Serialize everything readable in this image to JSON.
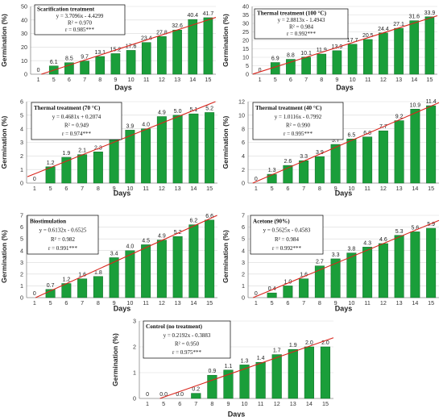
{
  "colors": {
    "bar": "#1a9e3a",
    "bar_edge": "#0f6b25",
    "trend": "#d9251c",
    "grid": "#d9d9d9",
    "axis": "#888888"
  },
  "chart_data": [
    {
      "type": "bar",
      "title": "Scarification treatment",
      "equation": "y = 3.7096x - 4.4299",
      "r2": "R² = 0.970",
      "r": "r = 0.985***",
      "categories": [
        "1",
        "5",
        "6",
        "7",
        "8",
        "9",
        "10",
        "11",
        "12",
        "13",
        "14",
        "15"
      ],
      "values": [
        0,
        6.1,
        8.5,
        9.7,
        13.1,
        15.2,
        17.6,
        23.4,
        27.8,
        32.6,
        40.4,
        41.7
      ],
      "labels": [
        "0",
        "6.1",
        "8.5",
        "9.7",
        "13.1",
        "15.2",
        "17.6",
        "23.4",
        "27.8",
        "32.6",
        "40.4",
        "41.7"
      ],
      "ylim": [
        0,
        50
      ],
      "yticks": [
        0,
        10,
        20,
        30,
        40,
        50
      ],
      "trend": {
        "slope": 3.7096,
        "intercept": -4.4299
      },
      "xlabel": "Days",
      "ylabel": "Germination (%)"
    },
    {
      "type": "bar",
      "title": "Thermal treatment (100 °C)",
      "equation": "y = 2.8813x - 1.4943",
      "r2": "R² = 0.984",
      "r": "r = 0.992***",
      "categories": [
        "1",
        "5",
        "6",
        "7",
        "8",
        "9",
        "10",
        "11",
        "12",
        "13",
        "14",
        "15"
      ],
      "values": [
        0,
        6.9,
        8.8,
        10.1,
        11.9,
        13.9,
        17.7,
        20.5,
        24.4,
        27.1,
        31.6,
        33.9
      ],
      "labels": [
        "0",
        "6.9",
        "8.8",
        "10.1",
        "11.9",
        "13.9",
        "17.7",
        "20.5",
        "24.4",
        "27.1",
        "31.6",
        "33.9"
      ],
      "ylim": [
        0,
        40
      ],
      "yticks": [
        0,
        5,
        10,
        15,
        20,
        25,
        30,
        35,
        40
      ],
      "trend": {
        "slope": 2.8813,
        "intercept": -1.4943
      },
      "xlabel": "Days",
      "ylabel": "Germination (%)"
    },
    {
      "type": "bar",
      "title": "Thermal treatment (70 °C)",
      "equation": "y = 0.4681x + 0.2074",
      "r2": "R² = 0.949",
      "r": "r = 0.974***",
      "categories": [
        "1",
        "5",
        "6",
        "7",
        "8",
        "9",
        "10",
        "11",
        "12",
        "13",
        "14",
        "15"
      ],
      "values": [
        0,
        1.2,
        1.9,
        2.1,
        2.3,
        3.3,
        3.9,
        4.0,
        4.9,
        5.0,
        5.1,
        5.2
      ],
      "labels": [
        "0",
        "1.2",
        "1.9",
        "2.1",
        "2.3",
        "3.3",
        "3.9",
        "4.0",
        "4.9",
        "5.0",
        "5.1",
        "5.2"
      ],
      "ylim": [
        0,
        6
      ],
      "yticks": [
        0,
        1,
        2,
        3,
        4,
        5,
        6
      ],
      "trend": {
        "slope": 0.4681,
        "intercept": 0.2074
      },
      "xlabel": "Days",
      "ylabel": "Germination (%)"
    },
    {
      "type": "bar",
      "title": "Thermal treatment (40 °C)",
      "equation": "y = 1.0116x - 0.7992",
      "r2": "R² = 0.990",
      "r": "r = 0.995***",
      "categories": [
        "1",
        "5",
        "6",
        "7",
        "8",
        "9",
        "10",
        "11",
        "12",
        "13",
        "14",
        "15"
      ],
      "values": [
        0,
        1.3,
        2.6,
        3.3,
        3.9,
        5.7,
        6.5,
        6.8,
        7.7,
        9.2,
        10.9,
        11.4
      ],
      "labels": [
        "0",
        "1.3",
        "2.6",
        "3.3",
        "3.9",
        "5.7",
        "6.5",
        "6.8",
        "7.7",
        "9.2",
        "10.9",
        "11.4"
      ],
      "ylim": [
        0,
        12
      ],
      "yticks": [
        0,
        2,
        4,
        6,
        8,
        10,
        12
      ],
      "trend": {
        "slope": 1.0116,
        "intercept": -0.7992
      },
      "xlabel": "Days",
      "ylabel": "Germination (%)"
    },
    {
      "type": "bar",
      "title": "Biostimulation",
      "equation": "y = 0.6132x - 0.6525",
      "r2": "R² = 0.982",
      "r": "r = 0.991***",
      "categories": [
        "1",
        "5",
        "6",
        "7",
        "8",
        "9",
        "10",
        "11",
        "12",
        "13",
        "14",
        "15"
      ],
      "values": [
        0,
        0.7,
        1.2,
        1.6,
        1.8,
        3.4,
        4.0,
        4.5,
        4.9,
        5.2,
        6.2,
        6.6
      ],
      "labels": [
        "0",
        "0.7",
        "1.2",
        "1.6",
        "1.8",
        "3.4",
        "4.0",
        "4.5",
        "4.9",
        "5.2",
        "6.2",
        "6.6"
      ],
      "ylim": [
        0,
        7
      ],
      "yticks": [
        0,
        1,
        2,
        3,
        4,
        5,
        6,
        7
      ],
      "trend": {
        "slope": 0.6132,
        "intercept": -0.6525
      },
      "xlabel": "Days",
      "ylabel": "Germination (%)"
    },
    {
      "type": "bar",
      "title": "Acetone (90%)",
      "equation": "y = 0.5625x - 0.4583",
      "r2": "R² = 0.984",
      "r": "r = 0.992***",
      "categories": [
        "1",
        "5",
        "6",
        "7",
        "8",
        "9",
        "10",
        "11",
        "12",
        "13",
        "14",
        "15"
      ],
      "values": [
        0,
        0.4,
        1.0,
        1.6,
        2.7,
        3.3,
        3.8,
        4.3,
        4.6,
        5.3,
        5.6,
        5.9
      ],
      "labels": [
        "0",
        "0.4",
        "1.0",
        "1.6",
        "2.7",
        "3.3",
        "3.8",
        "4.3",
        "4.6",
        "5.3",
        "5.6",
        "5.9"
      ],
      "ylim": [
        0,
        7
      ],
      "yticks": [
        0,
        1,
        2,
        3,
        4,
        5,
        6,
        7
      ],
      "trend": {
        "slope": 0.5625,
        "intercept": -0.4583
      },
      "xlabel": "Days",
      "ylabel": "Germination (%)"
    },
    {
      "type": "bar",
      "title": "Control (no treatment)",
      "equation": "y = 0.2192x - 0.3883",
      "r2": "R² = 0.950",
      "r": "r = 0.975***",
      "categories": [
        "1",
        "5",
        "6",
        "7",
        "8",
        "9",
        "10",
        "11",
        "12",
        "13",
        "14",
        "15"
      ],
      "values": [
        0,
        0.0,
        0.0,
        0.2,
        0.9,
        1.1,
        1.3,
        1.4,
        1.7,
        1.9,
        2.0,
        2.0
      ],
      "labels": [
        "0",
        "0.0",
        "0.0",
        "0.2",
        "0.9",
        "1.1",
        "1.3",
        "1.4",
        "1.7",
        "1.9",
        "2.0",
        "2.0"
      ],
      "ylim": [
        0,
        3
      ],
      "yticks": [
        0,
        1,
        2,
        3
      ],
      "trend": {
        "slope": 0.2192,
        "intercept": -0.3883
      },
      "xlabel": "Days",
      "ylabel": "Germination (%)"
    }
  ]
}
